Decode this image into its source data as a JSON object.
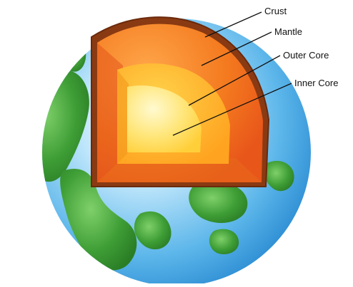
{
  "labels": {
    "crust": "Crust",
    "mantle": "Mantle",
    "outer_core": "Outer Core",
    "inner_core": "Inner Core"
  },
  "colors": {
    "ocean": "#5cb6ea",
    "land": "#3e9d35",
    "crust": "#8a3a12",
    "mantle": "#f47a1f",
    "outer_core": "#ffb325",
    "inner_core": "#ffe67a",
    "leader_line": "#111111"
  }
}
